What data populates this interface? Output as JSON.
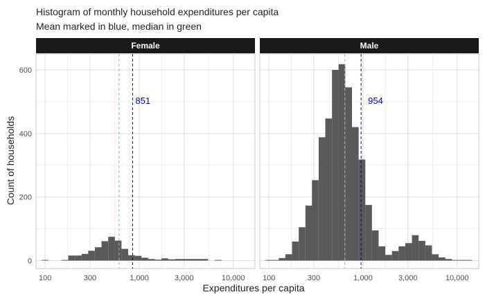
{
  "chart_data": {
    "type": "bar",
    "title": "Histogram of monthly household expenditures per capita",
    "subtitle": "Mean marked in blue, median in green",
    "xlabel": "Expenditures per capita",
    "ylabel": "Count of households",
    "x_scale": "log10",
    "xlim": [
      80,
      17000
    ],
    "ylim": [
      -25,
      650
    ],
    "x_ticks": [
      100,
      300,
      1000,
      3000,
      10000
    ],
    "x_tick_labels": [
      "100",
      "300",
      "1,000",
      "3,000",
      "10,000"
    ],
    "y_ticks": [
      0,
      200,
      400,
      600
    ],
    "y_tick_labels": [
      "0",
      "200",
      "400",
      "600"
    ],
    "bin_width_log10": 0.071,
    "colors": {
      "bars": "#595959",
      "mean_line": "#0000cc",
      "median_line": "#66dd66",
      "strip": "#1a1a1a",
      "grid": "#dedede"
    },
    "panels": [
      {
        "label": "Female",
        "mean": 851,
        "mean_label": "851",
        "median": 610,
        "bin_centers": [
          100,
          117,
          138,
          162,
          191,
          225,
          265,
          311,
          367,
          431,
          508,
          597,
          703,
          828,
          975,
          1147,
          1350,
          1590,
          1871,
          2203,
          2593,
          3053,
          3594,
          4231,
          4981,
          5863,
          6902
        ],
        "counts": [
          2,
          0,
          0,
          2,
          16,
          16,
          21,
          31,
          42,
          61,
          75,
          63,
          37,
          17,
          15,
          9,
          5,
          3,
          7,
          4,
          5,
          5,
          5,
          5,
          5,
          0,
          2
        ]
      },
      {
        "label": "Male",
        "mean": 954,
        "mean_label": "954",
        "median": 640,
        "bin_centers": [
          100,
          117,
          138,
          162,
          191,
          225,
          265,
          311,
          367,
          431,
          508,
          597,
          703,
          828,
          975,
          1147,
          1350,
          1590,
          1871,
          2203,
          2593,
          3053,
          3594,
          4231,
          4981,
          5863,
          6902,
          8125,
          9564,
          11259,
          13255
        ],
        "counts": [
          2,
          2,
          8,
          20,
          60,
          105,
          173,
          253,
          388,
          447,
          600,
          618,
          545,
          420,
          318,
          175,
          95,
          45,
          18,
          30,
          45,
          55,
          80,
          62,
          48,
          20,
          10,
          5,
          2,
          2,
          2
        ]
      }
    ]
  }
}
